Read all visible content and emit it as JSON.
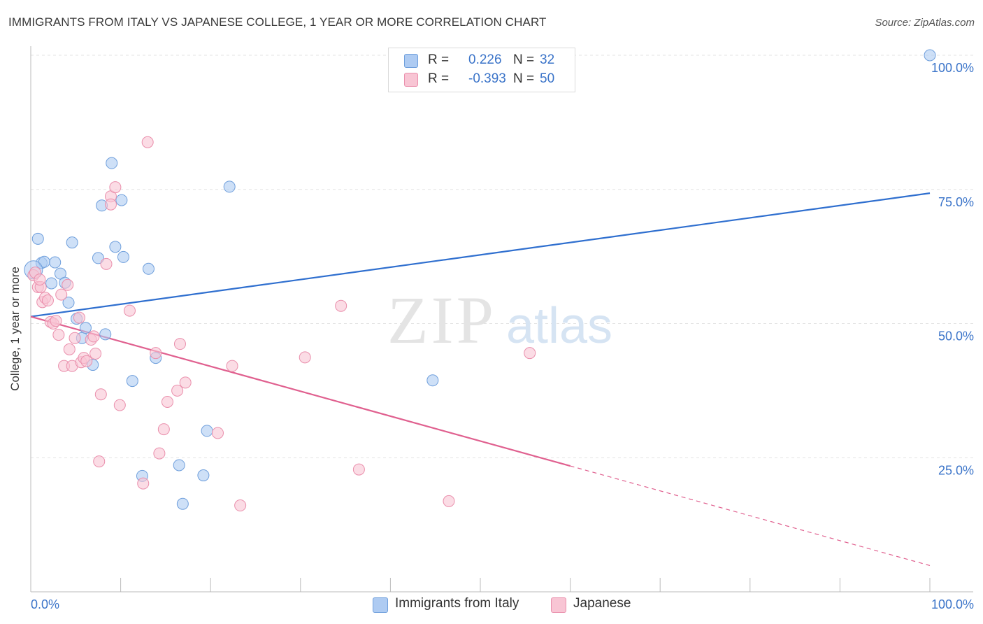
{
  "title": "IMMIGRANTS FROM ITALY VS JAPANESE COLLEGE, 1 YEAR OR MORE CORRELATION CHART",
  "source": "Source: ZipAtlas.com",
  "watermark": {
    "zip": "ZIP",
    "atlas": "atlas"
  },
  "colors": {
    "blue_fill": "#aecbf2",
    "blue_stroke": "#6f9fdc",
    "blue_line": "#2f6fcf",
    "pink_fill": "#f8c5d4",
    "pink_stroke": "#ea8fac",
    "pink_line": "#e0608f",
    "axis_text": "#3b74c9",
    "grid": "#e3e3e3"
  },
  "legend": {
    "rows": [
      {
        "r_label": "R =",
        "r_value": "0.226",
        "n_label": "N =",
        "n_value": "32",
        "color": "#aecbf2",
        "border": "#6f9fdc"
      },
      {
        "r_label": "R =",
        "r_value": "-0.393",
        "n_label": "N =",
        "n_value": "50",
        "color": "#f8c5d4",
        "border": "#ea8fac"
      }
    ]
  },
  "bottom_legend": [
    {
      "label": "Immigrants from Italy",
      "color": "#aecbf2",
      "border": "#6f9fdc"
    },
    {
      "label": "Japanese",
      "color": "#f8c5d4",
      "border": "#ea8fac"
    }
  ],
  "chart_data": {
    "type": "scatter",
    "title": "IMMIGRANTS FROM ITALY VS JAPANESE COLLEGE, 1 YEAR OR MORE CORRELATION CHART",
    "xlabel": "",
    "ylabel": "College, 1 year or more",
    "xlim": [
      0,
      100
    ],
    "ylim": [
      0,
      100
    ],
    "x_tick_labels": [
      "0.0%",
      "100.0%"
    ],
    "y_tick_labels": [
      "100.0%",
      "75.0%",
      "50.0%",
      "25.0%"
    ],
    "y_ticks": [
      100,
      75,
      50,
      25
    ],
    "grid": true,
    "legend_position": "top-center",
    "series": [
      {
        "name": "Immigrants from Italy",
        "r": 0.226,
        "n": 32,
        "color": "#aecbf2",
        "stroke": "#6f9fdc",
        "points": [
          [
            0.8,
            65.8
          ],
          [
            1.2,
            61.3
          ],
          [
            1.5,
            61.5
          ],
          [
            2.3,
            57.5
          ],
          [
            2.7,
            61.4
          ],
          [
            3.3,
            59.3
          ],
          [
            3.8,
            57.6
          ],
          [
            4.2,
            53.9
          ],
          [
            4.6,
            65.1
          ],
          [
            5.1,
            50.9
          ],
          [
            5.7,
            47.3
          ],
          [
            6.1,
            49.2
          ],
          [
            6.9,
            42.3
          ],
          [
            7.5,
            62.2
          ],
          [
            7.9,
            72.0
          ],
          [
            8.3,
            48.0
          ],
          [
            9.0,
            79.9
          ],
          [
            9.4,
            64.3
          ],
          [
            10.1,
            73.0
          ],
          [
            10.3,
            62.4
          ],
          [
            11.3,
            39.3
          ],
          [
            12.4,
            21.6
          ],
          [
            13.1,
            60.2
          ],
          [
            13.9,
            43.6
          ],
          [
            16.5,
            23.6
          ],
          [
            16.9,
            16.4
          ],
          [
            19.2,
            21.7
          ],
          [
            19.6,
            30.0
          ],
          [
            22.1,
            75.5
          ],
          [
            44.7,
            39.4
          ],
          [
            100.0,
            100.0
          ],
          [
            0.3,
            60.0
          ]
        ]
      },
      {
        "name": "Japanese",
        "r": -0.393,
        "n": 50,
        "color": "#f8c5d4",
        "stroke": "#ea8fac",
        "points": [
          [
            0.3,
            59.0
          ],
          [
            0.8,
            56.8
          ],
          [
            1.1,
            56.8
          ],
          [
            1.3,
            54.0
          ],
          [
            1.6,
            54.8
          ],
          [
            1.9,
            54.3
          ],
          [
            2.2,
            50.3
          ],
          [
            2.5,
            50.0
          ],
          [
            2.8,
            50.5
          ],
          [
            3.1,
            47.9
          ],
          [
            3.4,
            55.4
          ],
          [
            3.7,
            42.1
          ],
          [
            4.1,
            57.2
          ],
          [
            4.3,
            45.2
          ],
          [
            4.6,
            42.1
          ],
          [
            4.9,
            47.3
          ],
          [
            5.4,
            51.1
          ],
          [
            5.6,
            42.8
          ],
          [
            5.9,
            43.6
          ],
          [
            6.2,
            43.0
          ],
          [
            6.7,
            47.0
          ],
          [
            7.0,
            47.6
          ],
          [
            7.2,
            44.4
          ],
          [
            7.6,
            24.3
          ],
          [
            7.8,
            36.8
          ],
          [
            8.4,
            61.1
          ],
          [
            8.9,
            73.7
          ],
          [
            8.9,
            72.2
          ],
          [
            9.4,
            75.4
          ],
          [
            9.9,
            34.8
          ],
          [
            11.0,
            52.4
          ],
          [
            12.5,
            20.2
          ],
          [
            13.0,
            83.8
          ],
          [
            13.9,
            44.5
          ],
          [
            14.3,
            25.8
          ],
          [
            14.8,
            30.3
          ],
          [
            15.2,
            35.4
          ],
          [
            16.3,
            37.5
          ],
          [
            16.6,
            46.2
          ],
          [
            17.2,
            39.0
          ],
          [
            20.8,
            29.6
          ],
          [
            22.4,
            42.1
          ],
          [
            23.3,
            16.1
          ],
          [
            30.5,
            43.7
          ],
          [
            34.5,
            53.3
          ],
          [
            36.5,
            22.8
          ],
          [
            46.5,
            16.9
          ],
          [
            55.5,
            44.5
          ],
          [
            0.5,
            59.5
          ],
          [
            1.0,
            58.2
          ]
        ]
      }
    ],
    "trendlines": [
      {
        "series": "Immigrants from Italy",
        "x": [
          0,
          100
        ],
        "y": [
          51.3,
          74.3
        ],
        "dashed_from": null
      },
      {
        "series": "Japanese",
        "x": [
          0,
          100
        ],
        "y": [
          51.3,
          4.9
        ],
        "dashed_from": 60
      }
    ]
  }
}
